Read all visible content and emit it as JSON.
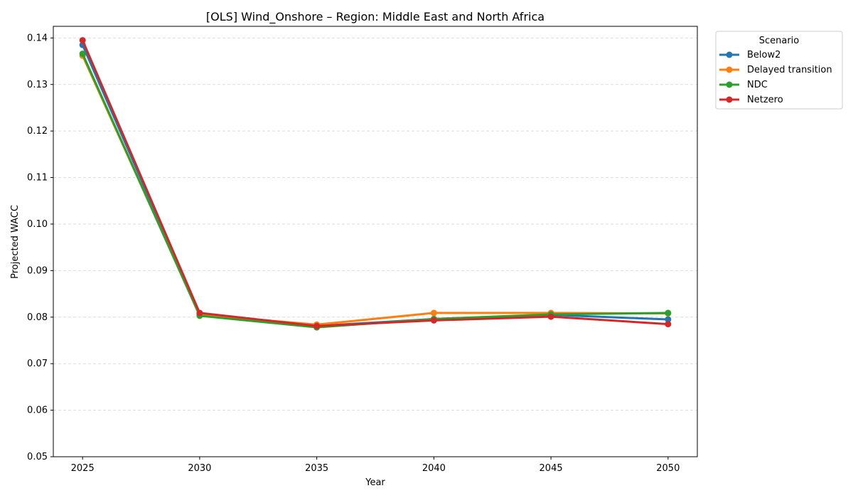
{
  "chart_data": {
    "type": "line",
    "title": "[OLS] Wind_Onshore – Region: Middle East and North Africa",
    "xlabel": "Year",
    "ylabel": "Projected WACC",
    "x": [
      2025,
      2030,
      2035,
      2040,
      2045,
      2050
    ],
    "xlim": [
      2023.75,
      2051.25
    ],
    "ylim": [
      0.05,
      0.1425
    ],
    "yticks": [
      0.05,
      0.06,
      0.07,
      0.08,
      0.09,
      0.1,
      0.11,
      0.12,
      0.13,
      0.14
    ],
    "ytick_labels": [
      "0.05",
      "0.06",
      "0.07",
      "0.08",
      "0.09",
      "0.10",
      "0.11",
      "0.12",
      "0.13",
      "0.14"
    ],
    "xticks": [
      2025,
      2030,
      2035,
      2040,
      2045,
      2050
    ],
    "xtick_labels": [
      "2025",
      "2030",
      "2035",
      "2040",
      "2045",
      "2050"
    ],
    "grid": "y-dashed",
    "legend": {
      "title": "Scenario",
      "placement": "outside-top-right"
    },
    "series": [
      {
        "name": "Below2",
        "color": "#1f77b4",
        "values": [
          0.1385,
          0.0807,
          0.0781,
          0.0796,
          0.0805,
          0.0795
        ]
      },
      {
        "name": "Delayed transition",
        "color": "#ff7f0e",
        "values": [
          0.1362,
          0.0805,
          0.0784,
          0.0809,
          0.0809,
          0.0808
        ]
      },
      {
        "name": "NDC",
        "color": "#2ca02c",
        "values": [
          0.1366,
          0.0803,
          0.0778,
          0.0796,
          0.0806,
          0.0809
        ]
      },
      {
        "name": "Netzero",
        "color": "#d62728",
        "values": [
          0.1395,
          0.0809,
          0.0781,
          0.0793,
          0.0801,
          0.0785
        ]
      }
    ]
  }
}
